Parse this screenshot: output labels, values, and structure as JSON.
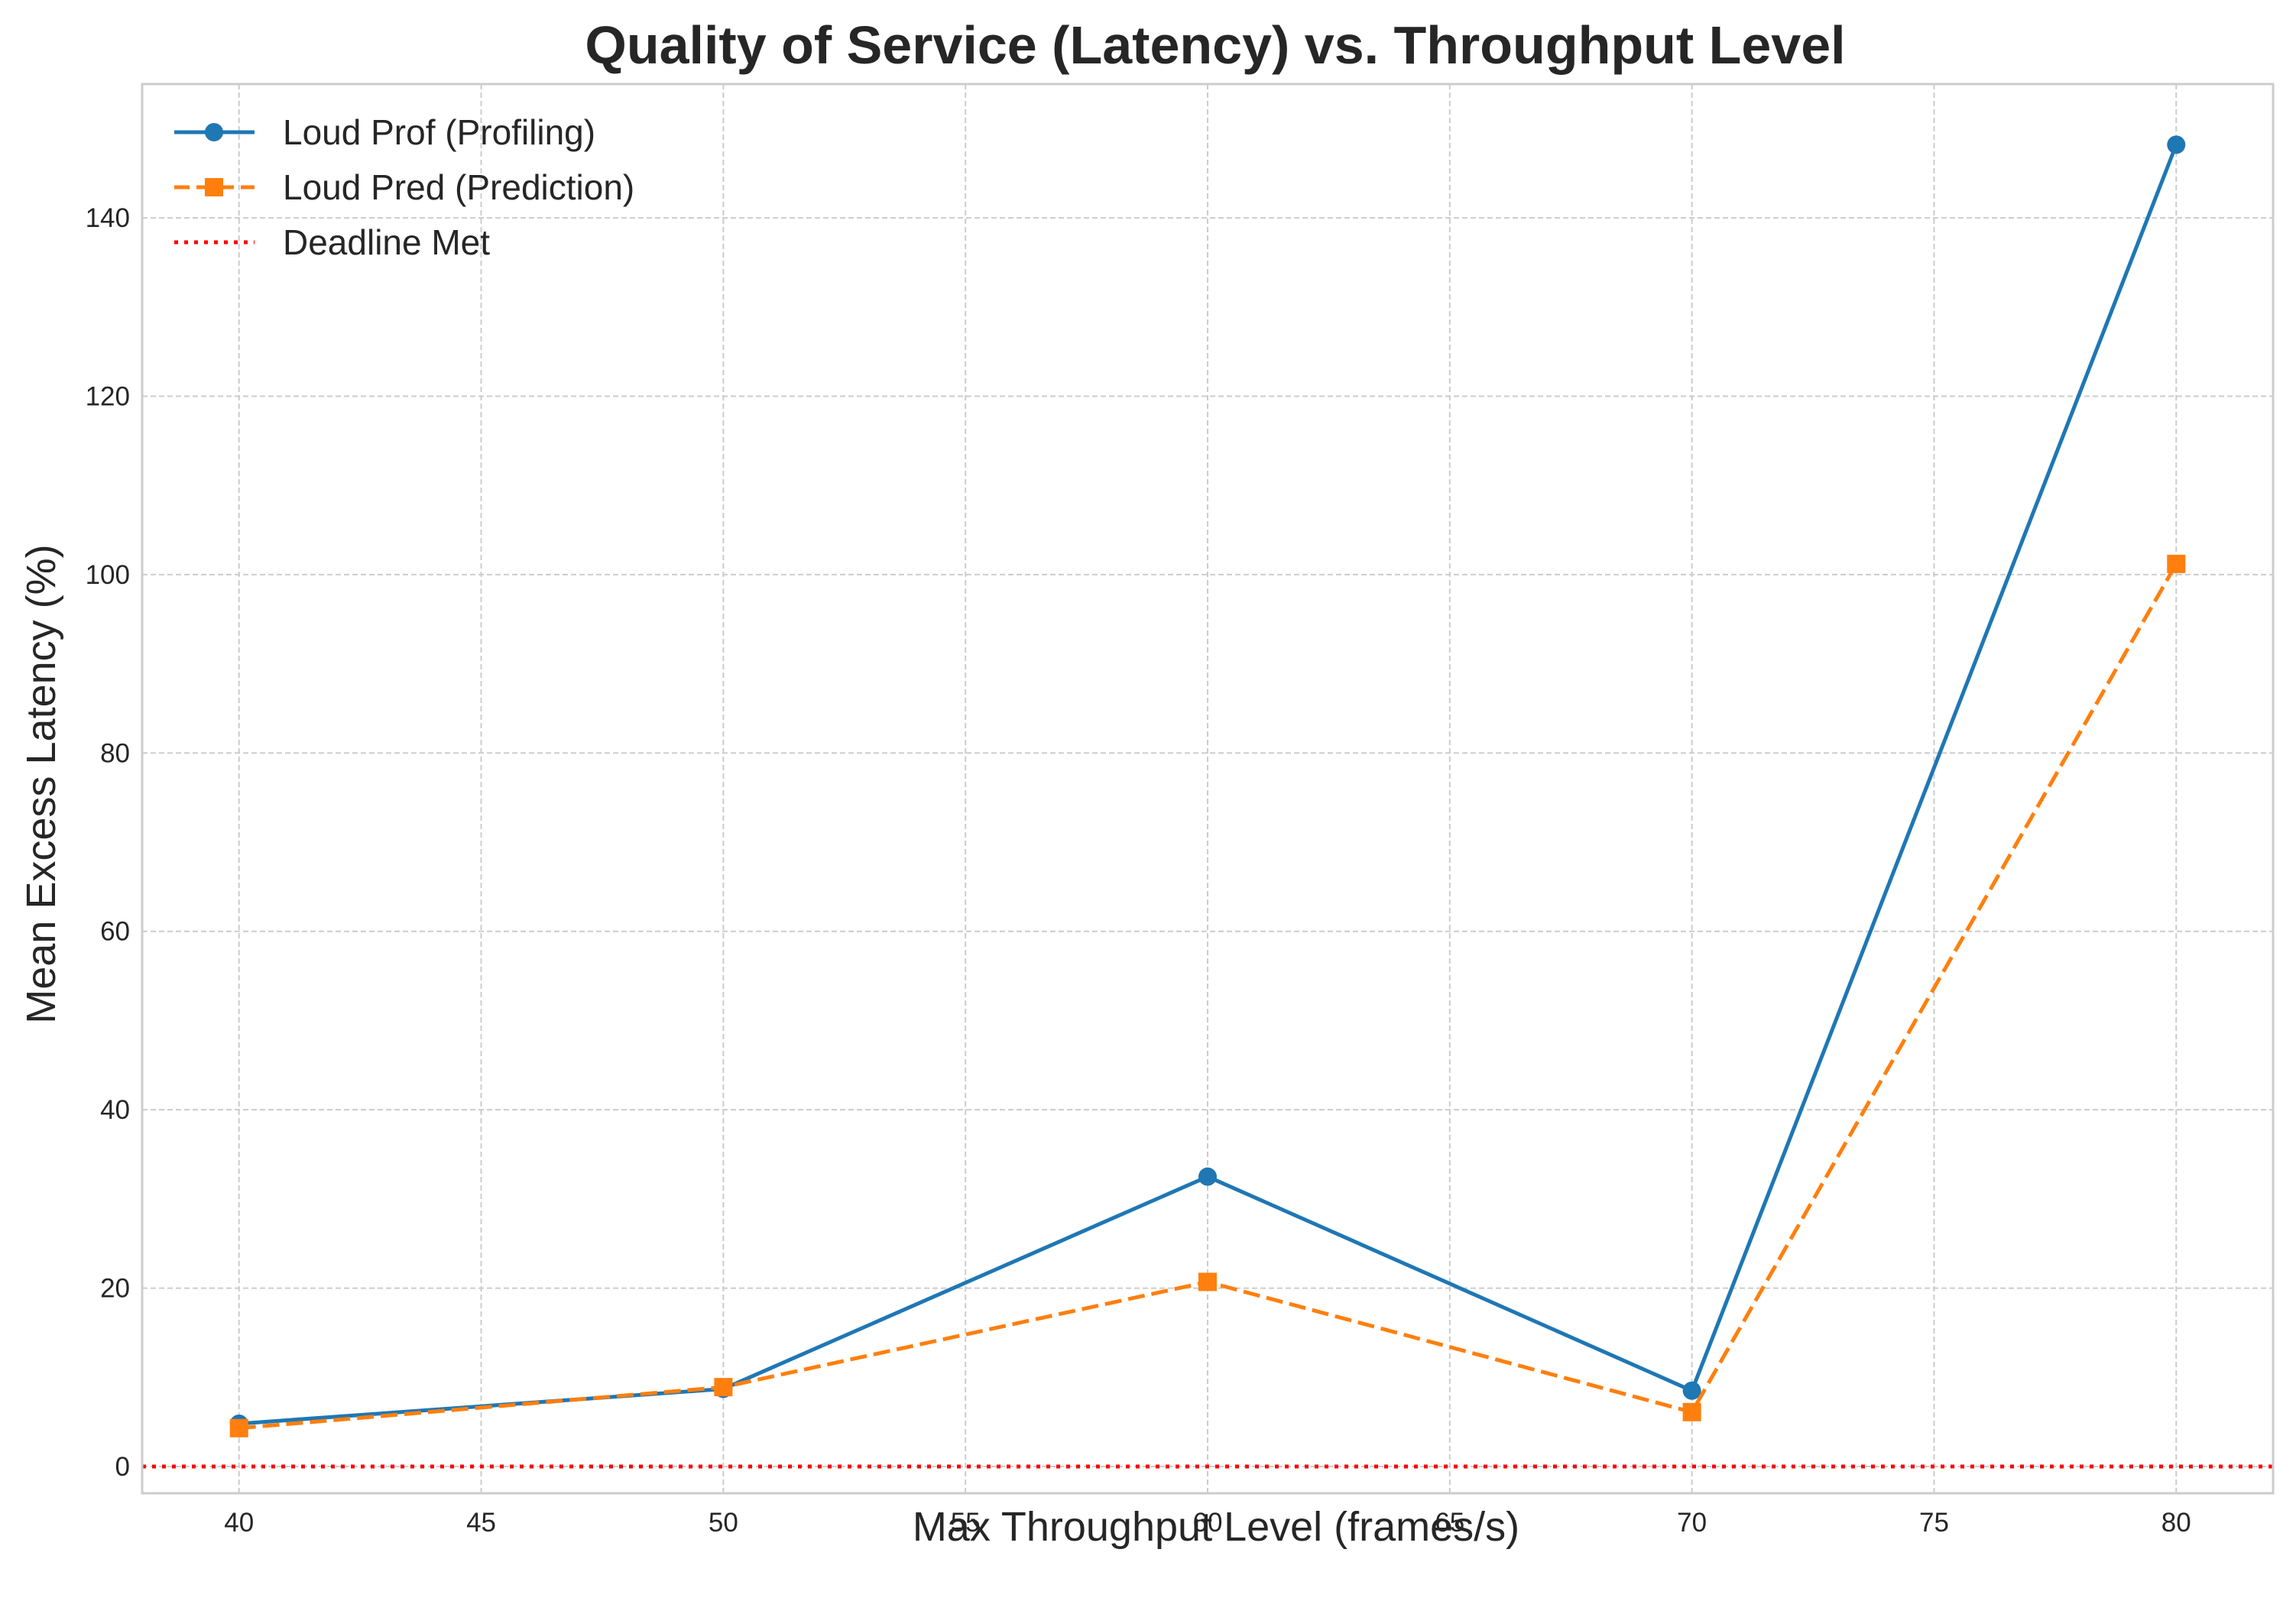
{
  "chart_data": {
    "type": "line",
    "title": "Quality of Service (Latency) vs. Throughput Level",
    "xlabel": "Max Throughput Level (frames/s)",
    "ylabel": "Mean Excess Latency (%)",
    "x": [
      40,
      50,
      60,
      70,
      80
    ],
    "xlim": [
      38,
      82
    ],
    "ylim": [
      -3,
      155
    ],
    "xticks": [
      40,
      45,
      50,
      55,
      60,
      65,
      70,
      75,
      80
    ],
    "yticks": [
      0,
      20,
      40,
      60,
      80,
      100,
      120,
      140
    ],
    "grid": true,
    "legend_position": "top-left",
    "series": [
      {
        "name": "Loud Prof (Profiling)",
        "values": [
          4.8,
          8.7,
          32.5,
          8.5,
          148.2
        ],
        "color": "#1f77b4",
        "linestyle": "solid",
        "marker": "circle"
      },
      {
        "name": "Loud Pred (Prediction)",
        "values": [
          4.3,
          8.9,
          20.7,
          6.1,
          101.2
        ],
        "color": "#ff7f0e",
        "linestyle": "dashed",
        "marker": "square"
      }
    ],
    "reference_lines": [
      {
        "name": "Deadline Met",
        "y": 0,
        "color": "#ff0000",
        "linestyle": "dotted"
      }
    ]
  }
}
